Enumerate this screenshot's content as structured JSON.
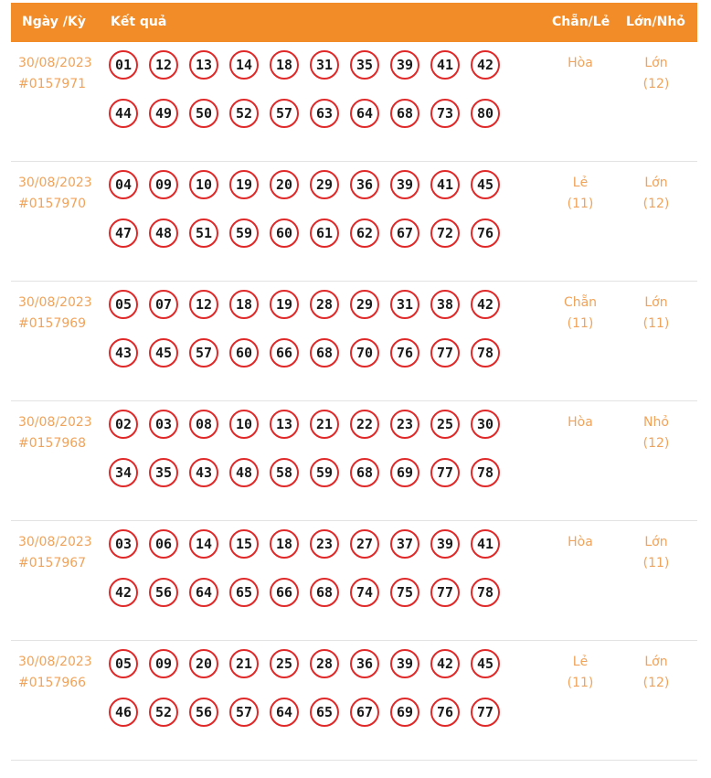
{
  "header": {
    "date_label": "Ngày /Kỳ",
    "result_label": "Kết quả",
    "even_odd_label": "Chẵn/Lẻ",
    "big_small_label": "Lớn/Nhỏ"
  },
  "rows": [
    {
      "date": "30/08/2023",
      "period": "#0157971",
      "numbers": [
        "01",
        "12",
        "13",
        "14",
        "18",
        "31",
        "35",
        "39",
        "41",
        "42",
        "44",
        "49",
        "50",
        "52",
        "57",
        "63",
        "64",
        "68",
        "73",
        "80"
      ],
      "even_odd": "Hòa",
      "even_odd_count": "",
      "big_small": "Lớn",
      "big_small_count": "(12)"
    },
    {
      "date": "30/08/2023",
      "period": "#0157970",
      "numbers": [
        "04",
        "09",
        "10",
        "19",
        "20",
        "29",
        "36",
        "39",
        "41",
        "45",
        "47",
        "48",
        "51",
        "59",
        "60",
        "61",
        "62",
        "67",
        "72",
        "76"
      ],
      "even_odd": "Lẻ",
      "even_odd_count": "(11)",
      "big_small": "Lớn",
      "big_small_count": "(12)"
    },
    {
      "date": "30/08/2023",
      "period": "#0157969",
      "numbers": [
        "05",
        "07",
        "12",
        "18",
        "19",
        "28",
        "29",
        "31",
        "38",
        "42",
        "43",
        "45",
        "57",
        "60",
        "66",
        "68",
        "70",
        "76",
        "77",
        "78"
      ],
      "even_odd": "Chẵn",
      "even_odd_count": "(11)",
      "big_small": "Lớn",
      "big_small_count": "(11)"
    },
    {
      "date": "30/08/2023",
      "period": "#0157968",
      "numbers": [
        "02",
        "03",
        "08",
        "10",
        "13",
        "21",
        "22",
        "23",
        "25",
        "30",
        "34",
        "35",
        "43",
        "48",
        "58",
        "59",
        "68",
        "69",
        "77",
        "78"
      ],
      "even_odd": "Hòa",
      "even_odd_count": "",
      "big_small": "Nhỏ",
      "big_small_count": "(12)"
    },
    {
      "date": "30/08/2023",
      "period": "#0157967",
      "numbers": [
        "03",
        "06",
        "14",
        "15",
        "18",
        "23",
        "27",
        "37",
        "39",
        "41",
        "42",
        "56",
        "64",
        "65",
        "66",
        "68",
        "74",
        "75",
        "77",
        "78"
      ],
      "even_odd": "Hòa",
      "even_odd_count": "",
      "big_small": "Lớn",
      "big_small_count": "(11)"
    },
    {
      "date": "30/08/2023",
      "period": "#0157966",
      "numbers": [
        "05",
        "09",
        "20",
        "21",
        "25",
        "28",
        "36",
        "39",
        "42",
        "45",
        "46",
        "52",
        "56",
        "57",
        "64",
        "65",
        "67",
        "69",
        "76",
        "77"
      ],
      "even_odd": "Lẻ",
      "even_odd_count": "(11)",
      "big_small": "Lớn",
      "big_small_count": "(12)"
    }
  ]
}
